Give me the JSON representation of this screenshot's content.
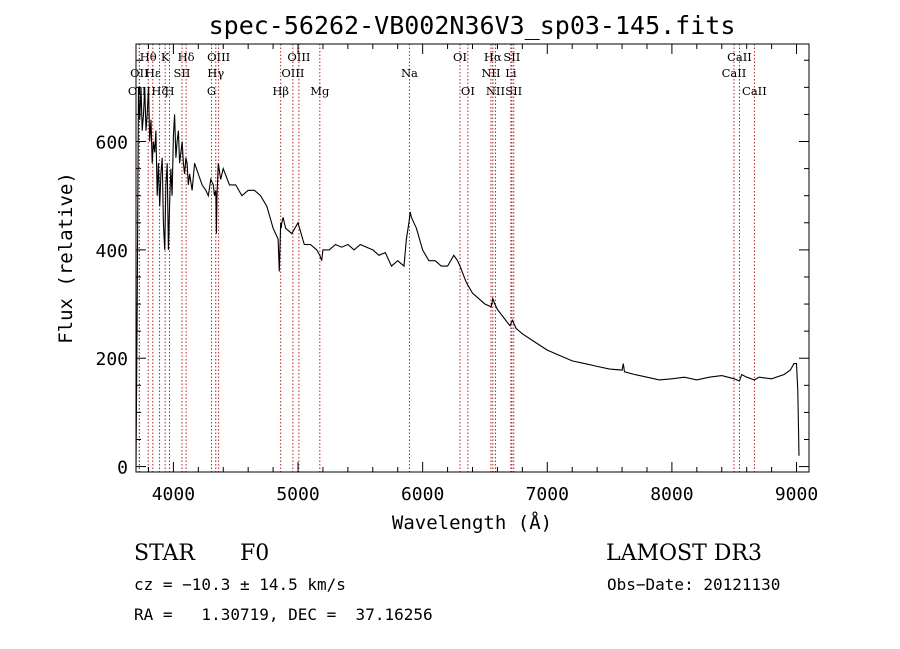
{
  "chart_data": {
    "type": "line",
    "title": "spec-56262-VB002N36V3_sp03-145.fits",
    "xlabel": "Wavelength (Å)",
    "ylabel": "Flux (relative)",
    "xlim": [
      3700,
      9100
    ],
    "ylim": [
      -10,
      780
    ],
    "xticks": [
      4000,
      5000,
      6000,
      7000,
      8000,
      9000
    ],
    "yticks": [
      0,
      200,
      400,
      600
    ],
    "x": [
      3700,
      3710,
      3720,
      3730,
      3740,
      3750,
      3760,
      3770,
      3780,
      3790,
      3800,
      3810,
      3820,
      3830,
      3840,
      3850,
      3860,
      3870,
      3880,
      3890,
      3900,
      3910,
      3920,
      3930,
      3940,
      3950,
      3960,
      3970,
      3980,
      3990,
      4000,
      4010,
      4020,
      4030,
      4040,
      4050,
      4060,
      4070,
      4080,
      4090,
      4100,
      4110,
      4120,
      4130,
      4150,
      4170,
      4200,
      4230,
      4260,
      4280,
      4300,
      4320,
      4330,
      4340,
      4345,
      4350,
      4360,
      4380,
      4400,
      4450,
      4500,
      4550,
      4600,
      4650,
      4700,
      4750,
      4800,
      4820,
      4840,
      4850,
      4855,
      4861,
      4865,
      4870,
      4880,
      4900,
      4950,
      5000,
      5050,
      5100,
      5150,
      5175,
      5190,
      5200,
      5250,
      5300,
      5350,
      5400,
      5450,
      5500,
      5550,
      5600,
      5650,
      5700,
      5750,
      5800,
      5850,
      5870,
      5890,
      5900,
      5910,
      5930,
      5950,
      6000,
      6050,
      6100,
      6150,
      6200,
      6250,
      6280,
      6300,
      6350,
      6400,
      6450,
      6500,
      6550,
      6563,
      6580,
      6600,
      6650,
      6700,
      6720,
      6750,
      6800,
      6900,
      7000,
      7100,
      7200,
      7300,
      7400,
      7500,
      7600,
      7610,
      7620,
      7700,
      7800,
      7900,
      8000,
      8100,
      8200,
      8300,
      8400,
      8500,
      8542,
      8560,
      8600,
      8662,
      8700,
      8800,
      8900,
      8950,
      8980,
      9000,
      9010,
      9020
    ],
    "y": [
      -5,
      300,
      700,
      640,
      700,
      620,
      650,
      700,
      620,
      650,
      700,
      600,
      640,
      560,
      600,
      580,
      620,
      500,
      560,
      480,
      540,
      570,
      450,
      400,
      520,
      560,
      400,
      490,
      550,
      500,
      610,
      650,
      570,
      600,
      620,
      560,
      580,
      600,
      560,
      540,
      570,
      560,
      520,
      540,
      510,
      560,
      540,
      520,
      510,
      500,
      530,
      520,
      500,
      510,
      430,
      500,
      560,
      530,
      550,
      520,
      520,
      500,
      510,
      510,
      500,
      480,
      440,
      430,
      420,
      360,
      400,
      450,
      440,
      450,
      460,
      440,
      430,
      450,
      410,
      410,
      400,
      390,
      380,
      400,
      400,
      410,
      405,
      410,
      400,
      410,
      405,
      400,
      390,
      395,
      370,
      380,
      370,
      420,
      450,
      470,
      460,
      450,
      440,
      400,
      380,
      380,
      370,
      370,
      390,
      380,
      370,
      340,
      320,
      310,
      300,
      295,
      310,
      300,
      290,
      275,
      260,
      270,
      255,
      245,
      230,
      215,
      205,
      195,
      190,
      185,
      180,
      178,
      190,
      175,
      170,
      165,
      160,
      162,
      165,
      160,
      165,
      168,
      162,
      158,
      170,
      165,
      160,
      165,
      162,
      170,
      178,
      190,
      190,
      140,
      20
    ],
    "emission_lines": [
      {
        "name": "OII",
        "wavelength": 3727,
        "row": 2
      },
      {
        "name": "OIII",
        "wavelength": 3727,
        "row": 3
      },
      {
        "name": "Hθ",
        "wavelength": 3798,
        "row": 1
      },
      {
        "name": "Hε",
        "wavelength": 3835,
        "row": 2
      },
      {
        "name": "K",
        "wavelength": 3934,
        "row": 1
      },
      {
        "name": "Hζ",
        "wavelength": 3889,
        "row": 3
      },
      {
        "name": "H",
        "wavelength": 3969,
        "row": 3
      },
      {
        "name": "SII",
        "wavelength": 4069,
        "row": 2
      },
      {
        "name": "Hδ",
        "wavelength": 4102,
        "row": 1
      },
      {
        "name": "OIII",
        "wavelength": 4363,
        "row": 1
      },
      {
        "name": "Hγ",
        "wavelength": 4340,
        "row": 2
      },
      {
        "name": "G",
        "wavelength": 4306,
        "row": 3
      },
      {
        "name": "Hβ",
        "wavelength": 4861,
        "row": 3
      },
      {
        "name": "OIII",
        "wavelength": 5007,
        "row": 1
      },
      {
        "name": "OIII",
        "wavelength": 4959,
        "row": 2
      },
      {
        "name": "Mg",
        "wavelength": 5175,
        "row": 3
      },
      {
        "name": "Na",
        "wavelength": 5894,
        "row": 2
      },
      {
        "name": "OI",
        "wavelength": 6300,
        "row": 1
      },
      {
        "name": "OI",
        "wavelength": 6363,
        "row": 3
      },
      {
        "name": "Hα",
        "wavelength": 6563,
        "row": 1
      },
      {
        "name": "NII",
        "wavelength": 6548,
        "row": 2
      },
      {
        "name": "NII",
        "wavelength": 6584,
        "row": 3
      },
      {
        "name": "SII",
        "wavelength": 6716,
        "row": 1
      },
      {
        "name": "Li",
        "wavelength": 6708,
        "row": 2
      },
      {
        "name": "SII",
        "wavelength": 6731,
        "row": 3
      },
      {
        "name": "CaII",
        "wavelength": 8542,
        "row": 1
      },
      {
        "name": "CaII",
        "wavelength": 8498,
        "row": 2
      },
      {
        "name": "CaII",
        "wavelength": 8662,
        "row": 3
      }
    ]
  },
  "info": {
    "object_class": "STAR",
    "subclass": "F0",
    "survey": "LAMOST DR3",
    "cz": "cz = −10.3 ± 14.5 km/s",
    "obs_date": "Obs−Date: 20121130",
    "coords": "RA =   1.30719, DEC =  37.16256"
  }
}
